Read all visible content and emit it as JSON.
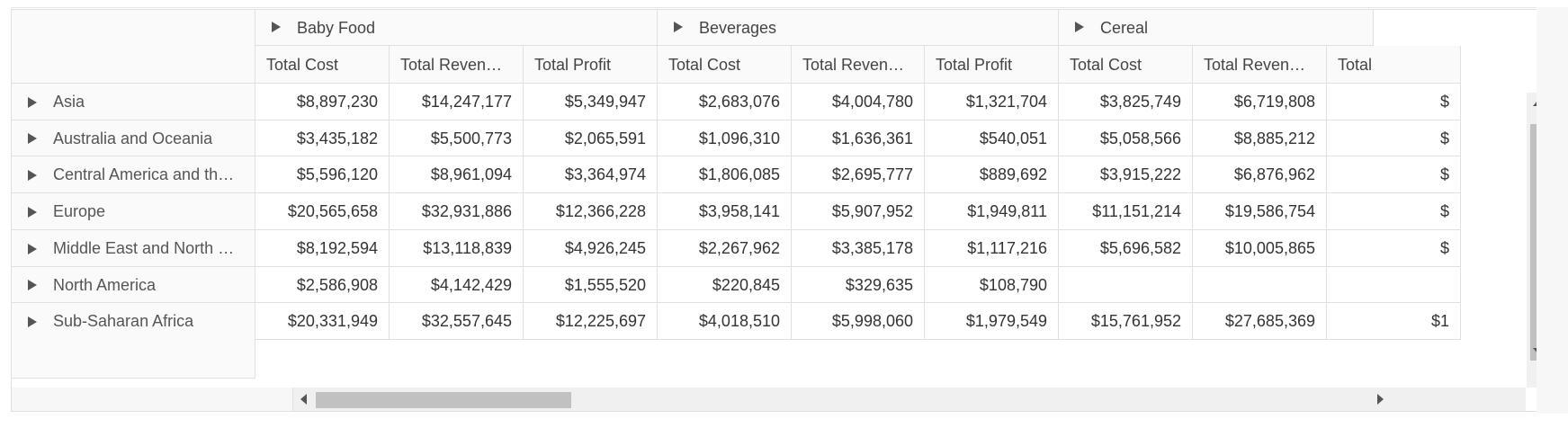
{
  "groups": [
    {
      "label": "Baby Food"
    },
    {
      "label": "Beverages"
    },
    {
      "label": "Cereal"
    }
  ],
  "measures": [
    "Total Cost",
    "Total Reven…",
    "Total Profit",
    "Total Cost",
    "Total Reven…",
    "Total Profit",
    "Total Cost",
    "Total Reven…",
    "Total"
  ],
  "rows": [
    {
      "label": "Asia",
      "values": [
        "$8,897,230",
        "$14,247,177",
        "$5,349,947",
        "$2,683,076",
        "$4,004,780",
        "$1,321,704",
        "$3,825,749",
        "$6,719,808",
        "$"
      ]
    },
    {
      "label": "Australia and Oceania",
      "values": [
        "$3,435,182",
        "$5,500,773",
        "$2,065,591",
        "$1,096,310",
        "$1,636,361",
        "$540,051",
        "$5,058,566",
        "$8,885,212",
        "$"
      ]
    },
    {
      "label": "Central America and th…",
      "values": [
        "$5,596,120",
        "$8,961,094",
        "$3,364,974",
        "$1,806,085",
        "$2,695,777",
        "$889,692",
        "$3,915,222",
        "$6,876,962",
        "$"
      ]
    },
    {
      "label": "Europe",
      "values": [
        "$20,565,658",
        "$32,931,886",
        "$12,366,228",
        "$3,958,141",
        "$5,907,952",
        "$1,949,811",
        "$11,151,214",
        "$19,586,754",
        "$"
      ]
    },
    {
      "label": "Middle East and North …",
      "values": [
        "$8,192,594",
        "$13,118,839",
        "$4,926,245",
        "$2,267,962",
        "$3,385,178",
        "$1,117,216",
        "$5,696,582",
        "$10,005,865",
        "$"
      ]
    },
    {
      "label": "North America",
      "values": [
        "$2,586,908",
        "$4,142,429",
        "$1,555,520",
        "$220,845",
        "$329,635",
        "$108,790",
        "",
        "",
        ""
      ]
    },
    {
      "label": "Sub-Saharan Africa",
      "values": [
        "$20,331,949",
        "$32,557,645",
        "$12,225,697",
        "$4,018,510",
        "$5,998,060",
        "$1,979,549",
        "$15,761,952",
        "$27,685,369",
        "$1"
      ]
    }
  ],
  "icons": {
    "expand": "caret-right-icon",
    "scroll_up": "arrow-up-icon",
    "scroll_down": "arrow-down-icon",
    "scroll_left": "arrow-left-icon",
    "scroll_right": "arrow-right-icon"
  },
  "colors": {
    "border": "#e0e0e0",
    "header_bg": "#fafafa",
    "scroll_thumb": "#c1c1c1"
  }
}
